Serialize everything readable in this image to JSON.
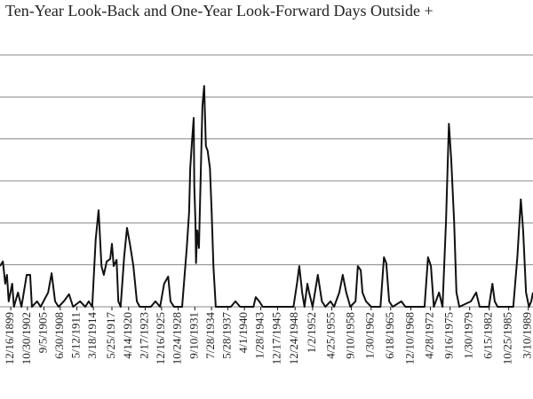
{
  "chart_data": {
    "type": "line",
    "title": "Ten-Year Look-Back and One-Year Look-Forward Days Outside +",
    "xlim": [
      1898.1,
      1990.0
    ],
    "ylim": [
      0,
      6
    ],
    "yticks": [
      0,
      1,
      2,
      3,
      4,
      5,
      6
    ],
    "grid": true,
    "xticks": [
      {
        "value": 1899.96,
        "label": "12/16/1899"
      },
      {
        "value": 1902.83,
        "label": "10/30/1902"
      },
      {
        "value": 1905.68,
        "label": "9/5/1905"
      },
      {
        "value": 1908.49,
        "label": "6/30/1908"
      },
      {
        "value": 1911.36,
        "label": "5/12/1911"
      },
      {
        "value": 1914.21,
        "label": "3/18/1914"
      },
      {
        "value": 1917.4,
        "label": "5/25/1917"
      },
      {
        "value": 1920.28,
        "label": "4/14/1920"
      },
      {
        "value": 1923.13,
        "label": "2/17/1923"
      },
      {
        "value": 1925.96,
        "label": "12/16/1925"
      },
      {
        "value": 1928.81,
        "label": "10/24/1928"
      },
      {
        "value": 1931.69,
        "label": "9/10/1931"
      },
      {
        "value": 1934.57,
        "label": "7/28/1934"
      },
      {
        "value": 1937.4,
        "label": "5/28/1937"
      },
      {
        "value": 1940.25,
        "label": "4/1/1940"
      },
      {
        "value": 1943.07,
        "label": "1/28/1943"
      },
      {
        "value": 1945.96,
        "label": "12/17/1945"
      },
      {
        "value": 1948.98,
        "label": "12/24/1948"
      },
      {
        "value": 1952.0,
        "label": "1/2/1952"
      },
      {
        "value": 1955.31,
        "label": "4/25/1955"
      },
      {
        "value": 1958.69,
        "label": "9/10/1958"
      },
      {
        "value": 1962.08,
        "label": "1/30/1962"
      },
      {
        "value": 1965.46,
        "label": "6/18/1965"
      },
      {
        "value": 1968.94,
        "label": "12/10/1968"
      },
      {
        "value": 1972.32,
        "label": "4/28/1972"
      },
      {
        "value": 1975.71,
        "label": "9/16/1975"
      },
      {
        "value": 1979.08,
        "label": "1/30/1979"
      },
      {
        "value": 1982.45,
        "label": "6/15/1982"
      },
      {
        "value": 1985.81,
        "label": "10/25/1985"
      },
      {
        "value": 1989.19,
        "label": "3/10/1989"
      }
    ],
    "series": [
      {
        "color": "#111111",
        "x": [
          1898.1,
          1898.6,
          1899.0,
          1899.3,
          1899.6,
          1900.2,
          1900.5,
          1901.2,
          1901.8,
          1902.7,
          1903.3,
          1903.6,
          1904.5,
          1905.1,
          1906.4,
          1907.0,
          1907.6,
          1908.2,
          1909.1,
          1910.0,
          1910.7,
          1911.9,
          1912.8,
          1913.4,
          1914.0,
          1914.6,
          1915.1,
          1915.6,
          1916.0,
          1916.5,
          1917.1,
          1917.4,
          1917.7,
          1918.2,
          1918.5,
          1918.9,
          1919.5,
          1920.0,
          1920.5,
          1921.1,
          1921.7,
          1922.2,
          1924.1,
          1924.9,
          1925.7,
          1926.4,
          1927.1,
          1927.5,
          1928.1,
          1929.5,
          1930.3,
          1930.7,
          1930.9,
          1931.2,
          1931.5,
          1931.6,
          1931.8,
          1931.9,
          1932.1,
          1932.4,
          1932.7,
          1933.0,
          1933.3,
          1933.6,
          1933.9,
          1934.3,
          1934.6,
          1934.9,
          1935.3,
          1937.9,
          1938.7,
          1939.5,
          1941.8,
          1942.2,
          1942.8,
          1943.4,
          1948.7,
          1949.3,
          1949.7,
          1950.2,
          1950.6,
          1951.1,
          1951.4,
          1952.0,
          1952.9,
          1953.6,
          1954.2,
          1955.1,
          1955.7,
          1956.6,
          1957.2,
          1957.8,
          1958.5,
          1959.4,
          1959.8,
          1960.3,
          1960.6,
          1961.2,
          1962.1,
          1963.7,
          1964.3,
          1964.7,
          1965.2,
          1965.8,
          1967.3,
          1968.0,
          1971.3,
          1971.9,
          1972.4,
          1972.9,
          1973.8,
          1974.4,
          1975.0,
          1975.5,
          1975.9,
          1976.4,
          1976.8,
          1977.3,
          1979.3,
          1980.2,
          1980.8,
          1982.4,
          1983.0,
          1983.4,
          1983.9,
          1986.6,
          1987.3,
          1987.9,
          1988.3,
          1988.8,
          1989.3,
          1989.7,
          1990.0
        ],
        "values": [
          0.97,
          1.08,
          0.55,
          0.76,
          0.13,
          0.55,
          0,
          0.34,
          0,
          0.76,
          0.76,
          0,
          0.13,
          0,
          0.34,
          0.8,
          0.13,
          0,
          0.13,
          0.3,
          0,
          0.13,
          0,
          0.13,
          0,
          1.61,
          2.3,
          0.97,
          0.76,
          1.08,
          1.14,
          1.5,
          0.97,
          1.12,
          0.13,
          0,
          1.18,
          1.88,
          1.5,
          0.97,
          0.13,
          0,
          0,
          0.13,
          0,
          0.55,
          0.72,
          0.13,
          0,
          0,
          1.4,
          2.24,
          3.3,
          3.93,
          4.5,
          2.87,
          2.03,
          1.04,
          1.82,
          1.4,
          3.09,
          4.78,
          5.26,
          3.83,
          3.72,
          3.3,
          2.24,
          0.97,
          0,
          0,
          0.13,
          0,
          0,
          0.23,
          0.13,
          0,
          0,
          0.55,
          0.97,
          0.34,
          0,
          0.55,
          0.34,
          0,
          0.76,
          0.13,
          0,
          0.13,
          0,
          0.34,
          0.76,
          0.34,
          0,
          0.13,
          0.97,
          0.87,
          0.34,
          0.13,
          0,
          0,
          1.18,
          1.04,
          0.13,
          0,
          0.13,
          0,
          0,
          1.18,
          0.97,
          0,
          0.34,
          0,
          2.03,
          4.36,
          3.51,
          2.03,
          0.34,
          0,
          0.13,
          0.34,
          0,
          0,
          0.55,
          0.13,
          0,
          0,
          1.18,
          2.56,
          1.82,
          0.34,
          0,
          0.13,
          0.34
        ]
      }
    ]
  }
}
